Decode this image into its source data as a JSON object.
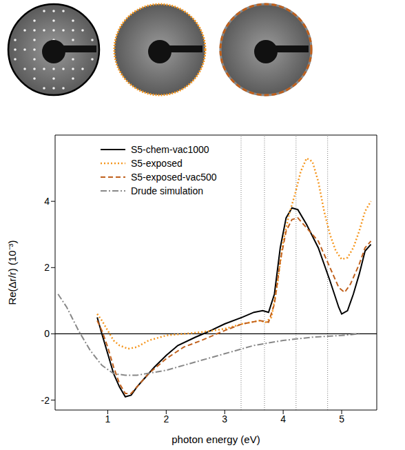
{
  "chart_data": {
    "type": "line",
    "x_label": "photon energy (eV)",
    "y_label": "Re(Δr/r) (10⁻³)",
    "xlim": [
      0.1,
      5.6
    ],
    "xticks": [
      1,
      2,
      3,
      4,
      5
    ],
    "ylim": [
      -2.3,
      6.0
    ],
    "yticks": [
      -2,
      0,
      2,
      4
    ],
    "legend": "upper left",
    "reference_lines_x": [
      3.28,
      3.68,
      4.22,
      4.76
    ],
    "reference_lines_y": [
      0
    ],
    "series": [
      {
        "name": "S5-chem-vac1000",
        "color": "#000000",
        "line_style": "solid",
        "x": [
          0.82,
          0.9,
          1.0,
          1.1,
          1.2,
          1.3,
          1.4,
          1.5,
          1.6,
          1.8,
          2.0,
          2.2,
          2.5,
          2.7,
          3.0,
          3.3,
          3.5,
          3.65,
          3.75,
          3.85,
          3.95,
          4.05,
          4.15,
          4.25,
          4.4,
          4.6,
          4.8,
          4.95,
          5.0,
          5.1,
          5.2,
          5.3,
          5.4,
          5.5
        ],
        "values": [
          0.5,
          0.0,
          -0.6,
          -1.2,
          -1.6,
          -1.9,
          -1.85,
          -1.6,
          -1.4,
          -1.0,
          -0.65,
          -0.35,
          -0.1,
          0.05,
          0.3,
          0.5,
          0.65,
          0.7,
          0.65,
          1.2,
          2.6,
          3.5,
          3.8,
          3.75,
          3.3,
          2.6,
          1.6,
          0.8,
          0.6,
          0.7,
          1.2,
          1.8,
          2.5,
          2.7
        ]
      },
      {
        "name": "S5-exposed",
        "color": "#f5961e",
        "line_style": "dotted",
        "x": [
          0.82,
          0.9,
          1.0,
          1.1,
          1.2,
          1.35,
          1.5,
          1.7,
          2.0,
          2.3,
          2.6,
          3.0,
          3.3,
          3.6,
          3.7,
          3.8,
          3.9,
          4.0,
          4.1,
          4.2,
          4.3,
          4.4,
          4.5,
          4.6,
          4.7,
          4.8,
          4.9,
          5.0,
          5.1,
          5.2,
          5.3,
          5.4,
          5.5
        ],
        "values": [
          0.6,
          0.4,
          0.1,
          -0.2,
          -0.35,
          -0.45,
          -0.4,
          -0.2,
          -0.05,
          0.0,
          0.05,
          0.15,
          0.3,
          0.4,
          0.35,
          0.5,
          1.5,
          2.8,
          3.6,
          4.2,
          4.9,
          5.3,
          5.2,
          4.6,
          3.7,
          3.0,
          2.5,
          2.25,
          2.3,
          2.6,
          3.1,
          3.7,
          4.0
        ]
      },
      {
        "name": "S5-exposed-vac500",
        "color": "#c0601c",
        "line_style": "dashed",
        "x": [
          0.82,
          0.9,
          1.0,
          1.1,
          1.2,
          1.3,
          1.4,
          1.5,
          1.7,
          2.0,
          2.3,
          2.6,
          3.0,
          3.3,
          3.6,
          3.75,
          3.85,
          3.95,
          4.05,
          4.15,
          4.25,
          4.4,
          4.6,
          4.8,
          4.95,
          5.05,
          5.15,
          5.3,
          5.4,
          5.5
        ],
        "values": [
          0.4,
          0.1,
          -0.4,
          -1.0,
          -1.5,
          -1.8,
          -1.8,
          -1.6,
          -1.2,
          -0.75,
          -0.4,
          -0.2,
          0.1,
          0.3,
          0.4,
          0.35,
          0.9,
          2.2,
          3.1,
          3.45,
          3.5,
          3.2,
          2.8,
          2.0,
          1.4,
          1.25,
          1.5,
          2.1,
          2.6,
          2.8
        ]
      },
      {
        "name": "Drude simulation",
        "color": "#888888",
        "line_style": "dashdot",
        "x": [
          0.15,
          0.3,
          0.5,
          0.7,
          0.9,
          1.1,
          1.3,
          1.5,
          2.0,
          2.5,
          3.0,
          3.5,
          4.0,
          4.5,
          5.0,
          5.3
        ],
        "values": [
          1.2,
          0.8,
          0.1,
          -0.5,
          -0.95,
          -1.2,
          -1.25,
          -1.25,
          -1.1,
          -0.85,
          -0.6,
          -0.35,
          -0.2,
          -0.1,
          -0.05,
          0.0
        ]
      }
    ]
  }
}
